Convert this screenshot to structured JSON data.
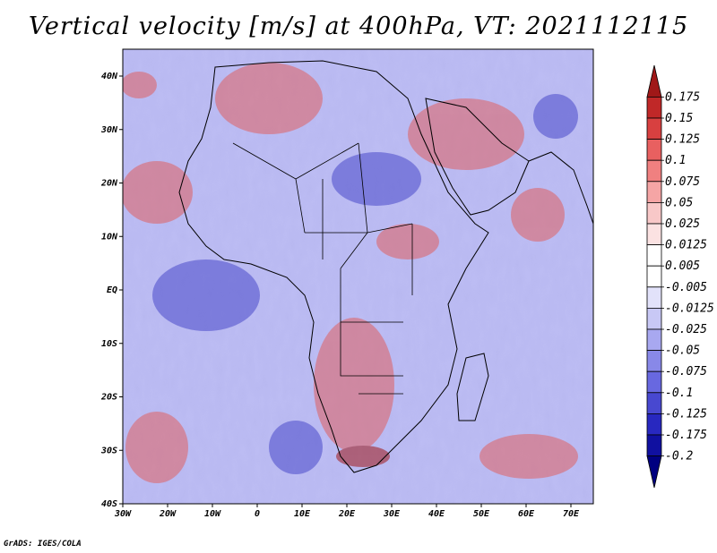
{
  "title": "Vertical velocity [m/s] at 400hPa, VT: 2021112115",
  "credit": "GrADS: IGES/COLA",
  "map": {
    "x_ticks": [
      "30W",
      "20W",
      "10W",
      "0",
      "10E",
      "20E",
      "30E",
      "40E",
      "50E",
      "60E",
      "70E"
    ],
    "y_ticks": [
      "40N",
      "30N",
      "20N",
      "10N",
      "EQ",
      "10S",
      "20S",
      "30S",
      "40S"
    ]
  },
  "colorbar": {
    "labels": [
      "0.175",
      "0.15",
      "0.125",
      "0.1",
      "0.075",
      "0.05",
      "0.025",
      "0.0125",
      "0.005",
      "-0.005",
      "-0.0125",
      "-0.025",
      "-0.05",
      "-0.075",
      "-0.1",
      "-0.125",
      "-0.175",
      "-0.2"
    ],
    "colors": [
      "#a01818",
      "#c02828",
      "#d84040",
      "#e86060",
      "#f08080",
      "#f5a5a5",
      "#f8c8c8",
      "#fbe2e2",
      "#ffffff",
      "#ffffff",
      "#e2e2fa",
      "#c8c8f5",
      "#a8a8f0",
      "#8888e8",
      "#6868e0",
      "#4848d0",
      "#2828c0",
      "#1010a0",
      "#000080"
    ]
  }
}
